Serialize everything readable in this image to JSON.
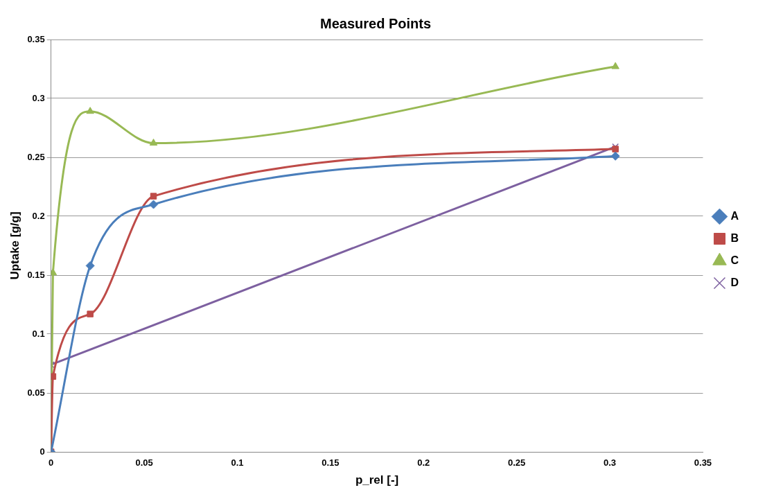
{
  "chart_data": {
    "type": "line",
    "title": "Measured Points",
    "xlabel": "p_rel [-]",
    "ylabel": "Uptake [g/g]",
    "xlim": [
      0,
      0.35
    ],
    "xticks": [
      0,
      0.05,
      0.1,
      0.15,
      0.2,
      0.25,
      0.3,
      0.35
    ],
    "ylim": [
      0,
      0.35
    ],
    "yticks": [
      0,
      0.05,
      0.1,
      0.15,
      0.2,
      0.25,
      0.3,
      0.35
    ],
    "grid": "y",
    "legend": "right",
    "series": [
      {
        "name": "A",
        "color": "#4a7ebb",
        "marker": "diamond",
        "x": [
          0,
          0.021,
          0.055,
          0.303
        ],
        "values": [
          0,
          0.158,
          0.21,
          0.251
        ]
      },
      {
        "name": "B",
        "color": "#be4b48",
        "marker": "square",
        "x": [
          0,
          0.001,
          0.021,
          0.055,
          0.303
        ],
        "values": [
          0,
          0.064,
          0.117,
          0.217,
          0.257
        ]
      },
      {
        "name": "C",
        "color": "#98b954",
        "marker": "triangle",
        "x": [
          0,
          0.001,
          0.021,
          0.055,
          0.303
        ],
        "values": [
          0,
          0.152,
          0.289,
          0.262,
          0.327
        ]
      },
      {
        "name": "D",
        "color": "#7d60a0",
        "marker": "cross",
        "x": [
          0,
          0.303
        ],
        "values": [
          0.074,
          0.259
        ]
      }
    ]
  }
}
